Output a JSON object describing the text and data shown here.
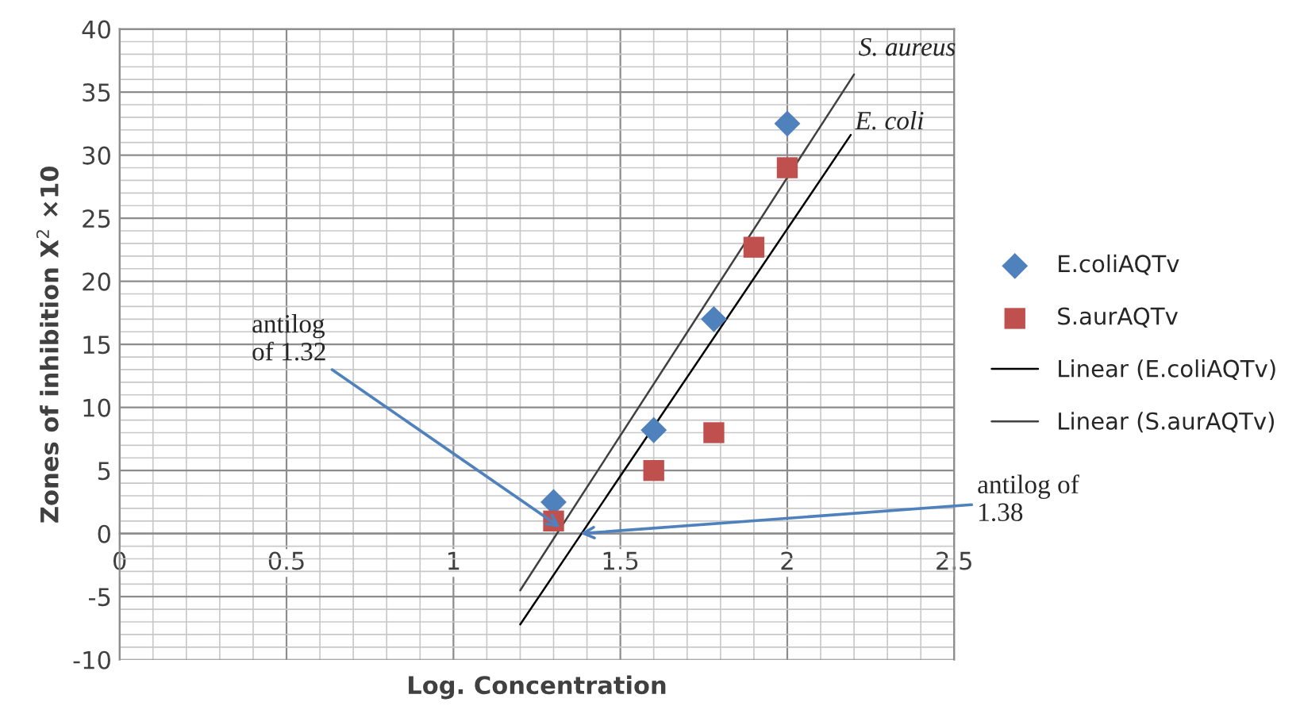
{
  "chart_data": {
    "type": "scatter",
    "xlabel": "Log. Concentration",
    "ylabel": "Zones of inhibition X$^{2}$ ×10",
    "xlim": [
      0,
      2.5
    ],
    "xticks": [
      0,
      0.5,
      1,
      1.5,
      2,
      2.5
    ],
    "ylim": [
      -10,
      40
    ],
    "yticks": [
      -10,
      -5,
      0,
      5,
      10,
      15,
      20,
      25,
      30,
      35,
      40
    ],
    "grid": true,
    "legend": "right",
    "series": [
      {
        "name": "E.coliAQTv",
        "marker": "diamond",
        "color": "#4f81bd",
        "x": [
          1.3,
          1.6,
          1.78,
          2.0
        ],
        "values": [
          2.5,
          8.2,
          17,
          32.5
        ]
      },
      {
        "name": "S.aurAQTv",
        "marker": "square",
        "color": "#c0504d",
        "x": [
          1.3,
          1.6,
          1.78,
          1.9,
          2.0
        ],
        "values": [
          1,
          5,
          8,
          22.7,
          29
        ]
      },
      {
        "name": "Linear (E.coliAQTv)",
        "type": "line",
        "marker": "none",
        "line_style": "solid",
        "color": "#000000",
        "x": [
          1.2,
          2.19
        ],
        "values": [
          -7.2,
          31.6
        ]
      },
      {
        "name": "Linear (S.aurAQTv)",
        "type": "line",
        "marker": "none",
        "line_style": "solid",
        "color": "#404040",
        "x": [
          1.2,
          2.2
        ],
        "values": [
          -4.5,
          36.4
        ]
      }
    ],
    "annotations": [
      {
        "text": "S. aureus",
        "x": 2.2,
        "y": 36.4
      },
      {
        "text": "E. coli",
        "x": 2.19,
        "y": 31.6
      },
      {
        "text": "antilog\nof 1.32",
        "x": 1.32,
        "y": 0.5
      },
      {
        "text": "antilog of\n1.38",
        "x": 1.38,
        "y": 0
      }
    ]
  }
}
